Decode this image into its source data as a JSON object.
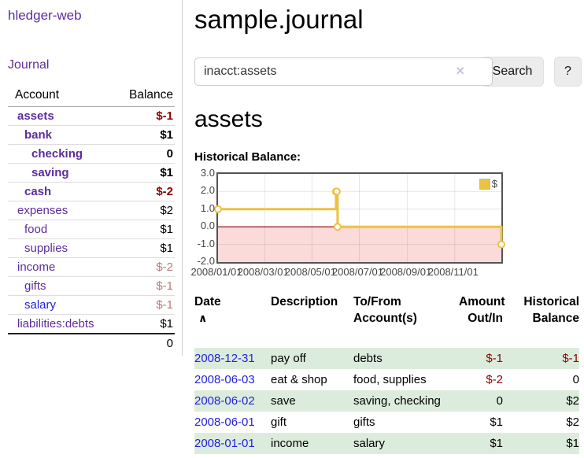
{
  "colors": {
    "link_purple": "#5c2d9c",
    "link_blue": "#2222dd",
    "negative_strong": "#8b0000",
    "negative_soft": "#b87a7a",
    "row_stripe_green": "#dcecdc",
    "chart_line_gold": "#edc240",
    "chart_negative_pink": "#fbdada",
    "chart_zero_line": "#8b0000",
    "button_gray": "#ececec"
  },
  "sidebar": {
    "brand": "hledger-web",
    "journal_label": "Journal",
    "table": {
      "account_header": "Account",
      "balance_header": "Balance",
      "rows": [
        {
          "name": "assets",
          "depth": 1,
          "bold": true,
          "link": "purple",
          "balance": "$-1"
        },
        {
          "name": "bank",
          "depth": 2,
          "bold": true,
          "link": "purple",
          "balance": "$1"
        },
        {
          "name": "checking",
          "depth": 3,
          "bold": true,
          "link": "purple",
          "balance": "0"
        },
        {
          "name": "saving",
          "depth": 3,
          "bold": true,
          "link": "purple",
          "balance": "$1"
        },
        {
          "name": "cash",
          "depth": 2,
          "bold": true,
          "link": "purple",
          "balance": "$-2"
        },
        {
          "name": "expenses",
          "depth": 1,
          "bold": false,
          "link": "purple",
          "balance": "$2"
        },
        {
          "name": "food",
          "depth": 2,
          "bold": false,
          "link": "purple",
          "balance": "$1"
        },
        {
          "name": "supplies",
          "depth": 2,
          "bold": false,
          "link": "purple",
          "balance": "$1"
        },
        {
          "name": "income",
          "depth": 1,
          "bold": false,
          "link": "purple",
          "balance": "$-2"
        },
        {
          "name": "gifts",
          "depth": 2,
          "bold": false,
          "link": "purple",
          "balance": "$-1"
        },
        {
          "name": "salary",
          "depth": 2,
          "bold": false,
          "link": "blue",
          "balance": "$-1"
        },
        {
          "name": "liabilities:debts",
          "depth": 1,
          "bold": false,
          "link": "purple",
          "balance": "$1"
        }
      ],
      "total": "0"
    }
  },
  "header": {
    "title": "sample.journal"
  },
  "search": {
    "value": "inacct:assets",
    "clear_icon": "×",
    "button_label": "Search",
    "help_label": "?"
  },
  "account_page": {
    "heading": "assets",
    "chart_label": "Historical Balance:"
  },
  "chart_data": {
    "type": "line",
    "step": true,
    "series_name": "$",
    "x": [
      "2008-01-01",
      "2008-06-01",
      "2008-06-02",
      "2008-06-03",
      "2008-12-31"
    ],
    "values": [
      1,
      2,
      2,
      0,
      -1
    ],
    "xlim": [
      "2008-01-01",
      "2008-12-31"
    ],
    "ylim": [
      -2,
      3
    ],
    "yticks": [
      "3.0",
      "2.0",
      "1.0",
      "0.0",
      "-1.0",
      "-2.0"
    ],
    "xticks": [
      "2008/01/01",
      "2008/03/01",
      "2008/05/01",
      "2008/07/01",
      "2008/09/01",
      "2008/11/01"
    ],
    "legend": {
      "label": "$",
      "position": "top-right"
    },
    "grid": true,
    "line_color": "#edc240",
    "negative_fill": "#fbdada",
    "zero_line_color": "#8b0000"
  },
  "register": {
    "headers": {
      "date": "Date",
      "sort_icon": "∧",
      "description": "Description",
      "accounts_line1": "To/From",
      "accounts_line2": "Account(s)",
      "amount_line1": "Amount",
      "amount_line2": "Out/In",
      "balance_line1": "Historical",
      "balance_line2": "Balance"
    },
    "rows": [
      {
        "date": "2008-12-31",
        "description": "pay off",
        "accounts": "debts",
        "amount": "$-1",
        "balance": "$-1"
      },
      {
        "date": "2008-06-03",
        "description": "eat & shop",
        "accounts": "food, supplies",
        "amount": "$-2",
        "balance": "0"
      },
      {
        "date": "2008-06-02",
        "description": "save",
        "accounts": "saving, checking",
        "amount": "0",
        "balance": "$2"
      },
      {
        "date": "2008-06-01",
        "description": "gift",
        "accounts": "gifts",
        "amount": "$1",
        "balance": "$2"
      },
      {
        "date": "2008-01-01",
        "description": "income",
        "accounts": "salary",
        "amount": "$1",
        "balance": "$1"
      }
    ]
  }
}
